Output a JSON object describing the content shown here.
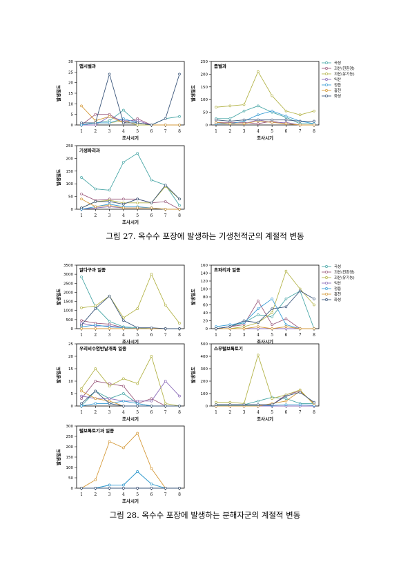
{
  "captions": {
    "fig27": "그림 27. 옥수수 포장에 발생하는 기생천적군의 계절적 변동",
    "fig28": "그림 28. 옥수수 포장에 발생하는 분해자군의 계절적 변동"
  },
  "legend_entries": [
    "곡성",
    "괴산(친환경)",
    "괴산(유기농)",
    "익산",
    "정읍",
    "홍천",
    "화성"
  ],
  "series_colors": [
    "#4aa7a7",
    "#9b5b7d",
    "#b4b44a",
    "#8b6bb8",
    "#3b9ed6",
    "#d59a3a",
    "#3a557a"
  ],
  "chart_data": [
    {
      "type": "line",
      "title": "맵시벌과",
      "xlabel": "조사시기",
      "ylabel": "발생밀도",
      "categories": [
        1,
        2,
        3,
        4,
        5,
        6,
        7,
        8
      ],
      "ylim": [
        0,
        30
      ],
      "yticks": [
        0,
        5,
        10,
        15,
        20,
        25,
        30
      ],
      "series": [
        {
          "name": "곡성",
          "values": [
            0,
            1,
            2,
            7,
            1,
            0,
            3,
            4
          ]
        },
        {
          "name": "괴산(친환경)",
          "values": [
            0,
            5,
            5,
            1,
            3,
            0,
            0,
            0
          ]
        },
        {
          "name": "괴산(유기농)",
          "values": [
            0,
            1,
            1,
            2,
            0,
            0,
            0,
            0
          ]
        },
        {
          "name": "익산",
          "values": [
            0,
            0,
            4,
            2,
            2,
            0,
            0,
            0
          ]
        },
        {
          "name": "정읍",
          "values": [
            0,
            1,
            1,
            3,
            1,
            0,
            0,
            0
          ]
        },
        {
          "name": "홍천",
          "values": [
            9,
            2,
            4,
            1,
            1,
            0,
            0,
            0
          ]
        },
        {
          "name": "화성",
          "values": [
            1,
            1,
            24,
            1,
            1,
            0,
            3,
            24
          ]
        }
      ]
    },
    {
      "type": "line",
      "title": "좀벌과",
      "xlabel": "조사시기",
      "ylabel": "발생밀도",
      "categories": [
        1,
        2,
        3,
        4,
        5,
        6,
        7,
        8
      ],
      "ylim": [
        0,
        250
      ],
      "yticks": [
        0,
        50,
        100,
        150,
        200,
        250
      ],
      "series": [
        {
          "name": "곡성",
          "values": [
            25,
            25,
            55,
            75,
            50,
            30,
            5,
            5
          ]
        },
        {
          "name": "괴산(친환경)",
          "values": [
            10,
            10,
            10,
            5,
            15,
            5,
            0,
            0
          ]
        },
        {
          "name": "괴산(유기농)",
          "values": [
            70,
            75,
            80,
            210,
            115,
            55,
            40,
            55
          ]
        },
        {
          "name": "익산",
          "values": [
            5,
            5,
            5,
            20,
            10,
            10,
            0,
            0
          ]
        },
        {
          "name": "정읍",
          "values": [
            5,
            5,
            15,
            40,
            55,
            35,
            15,
            5
          ]
        },
        {
          "name": "홍천",
          "values": [
            10,
            5,
            5,
            15,
            10,
            5,
            0,
            0
          ]
        },
        {
          "name": "화성",
          "values": [
            20,
            15,
            20,
            20,
            20,
            20,
            15,
            15
          ]
        }
      ]
    },
    {
      "type": "line",
      "title": "기생파리과",
      "xlabel": "조사시기",
      "ylabel": "발생밀도",
      "categories": [
        1,
        2,
        3,
        4,
        5,
        6,
        7,
        8
      ],
      "ylim": [
        0,
        250
      ],
      "yticks": [
        0,
        50,
        100,
        150,
        200,
        250
      ],
      "series": [
        {
          "name": "곡성",
          "values": [
            125,
            80,
            75,
            185,
            220,
            115,
            95,
            15
          ]
        },
        {
          "name": "괴산(친환경)",
          "values": [
            60,
            35,
            40,
            40,
            40,
            25,
            30,
            0
          ]
        },
        {
          "name": "괴산(유기농)",
          "values": [
            5,
            30,
            35,
            25,
            25,
            25,
            90,
            40
          ]
        },
        {
          "name": "익산",
          "values": [
            0,
            5,
            10,
            5,
            5,
            5,
            0,
            0
          ]
        },
        {
          "name": "정읍",
          "values": [
            0,
            10,
            20,
            10,
            10,
            5,
            0,
            0
          ]
        },
        {
          "name": "홍천",
          "values": [
            40,
            10,
            15,
            5,
            5,
            5,
            0,
            0
          ]
        },
        {
          "name": "화성",
          "values": [
            5,
            30,
            30,
            20,
            40,
            25,
            95,
            40
          ]
        }
      ]
    },
    {
      "type": "line",
      "title": "알다구과 일종",
      "xlabel": "조사시기",
      "ylabel": "발생밀도",
      "categories": [
        1,
        2,
        3,
        4,
        5,
        6,
        7,
        8
      ],
      "ylim": [
        0,
        3500
      ],
      "yticks": [
        0,
        500,
        1000,
        1500,
        2000,
        2500,
        3000,
        3500
      ],
      "series": [
        {
          "name": "곡성",
          "values": [
            2850,
            1200,
            400,
            100,
            50,
            0,
            0,
            0
          ]
        },
        {
          "name": "괴산(친환경)",
          "values": [
            450,
            300,
            250,
            50,
            0,
            0,
            0,
            0
          ]
        },
        {
          "name": "괴산(유기농)",
          "values": [
            1150,
            1250,
            1800,
            600,
            1100,
            3000,
            1300,
            300
          ]
        },
        {
          "name": "익산",
          "values": [
            300,
            150,
            150,
            50,
            0,
            0,
            0,
            0
          ]
        },
        {
          "name": "정읍",
          "values": [
            100,
            200,
            100,
            50,
            0,
            0,
            0,
            0
          ]
        },
        {
          "name": "홍천",
          "values": [
            0,
            0,
            0,
            0,
            0,
            0,
            0,
            0
          ]
        },
        {
          "name": "화성",
          "values": [
            200,
            1100,
            1800,
            450,
            50,
            50,
            0,
            0
          ]
        }
      ]
    },
    {
      "type": "line",
      "title": "초파리과 일종",
      "xlabel": "조사시기",
      "ylabel": "발생밀도",
      "categories": [
        1,
        2,
        3,
        4,
        5,
        6,
        7,
        8
      ],
      "ylim": [
        0,
        160
      ],
      "yticks": [
        0,
        20,
        40,
        60,
        80,
        100,
        120,
        140,
        160
      ],
      "series": [
        {
          "name": "곡성",
          "values": [
            0,
            5,
            15,
            35,
            30,
            75,
            95,
            0
          ]
        },
        {
          "name": "괴산(친환경)",
          "values": [
            0,
            5,
            10,
            70,
            10,
            25,
            0,
            0
          ]
        },
        {
          "name": "괴산(유기농)",
          "values": [
            0,
            0,
            5,
            15,
            40,
            145,
            100,
            60
          ]
        },
        {
          "name": "익산",
          "values": [
            0,
            0,
            0,
            0,
            0,
            0,
            0,
            0
          ]
        },
        {
          "name": "정읍",
          "values": [
            5,
            10,
            15,
            50,
            75,
            10,
            0,
            0
          ]
        },
        {
          "name": "홍천",
          "values": [
            0,
            0,
            0,
            5,
            0,
            5,
            0,
            0
          ]
        },
        {
          "name": "화성",
          "values": [
            0,
            5,
            20,
            15,
            50,
            55,
            95,
            75
          ]
        }
      ]
    },
    {
      "type": "line",
      "title": "우리비수염반날개족 일종",
      "xlabel": "조사시기",
      "ylabel": "발생밀도",
      "categories": [
        1,
        2,
        3,
        4,
        5,
        6,
        7,
        8
      ],
      "ylim": [
        0,
        25
      ],
      "yticks": [
        0,
        5,
        10,
        15,
        20,
        25
      ],
      "series": [
        {
          "name": "곡성",
          "values": [
            0,
            6,
            3,
            5,
            1,
            0,
            0,
            0
          ]
        },
        {
          "name": "괴산(친환경)",
          "values": [
            3,
            10,
            9,
            8,
            1,
            3,
            0,
            0
          ]
        },
        {
          "name": "괴산(유기농)",
          "values": [
            7,
            15,
            8,
            11,
            9,
            20,
            1,
            0
          ]
        },
        {
          "name": "익산",
          "values": [
            4,
            3,
            3,
            2,
            2,
            2,
            10,
            4
          ]
        },
        {
          "name": "정읍",
          "values": [
            0,
            1,
            1,
            2,
            1,
            0,
            0,
            0
          ]
        },
        {
          "name": "홍천",
          "values": [
            6,
            3,
            2,
            0,
            0,
            0,
            0,
            0
          ]
        },
        {
          "name": "화성",
          "values": [
            1,
            6,
            1,
            0,
            0,
            0,
            0,
            0
          ]
        }
      ]
    },
    {
      "type": "line",
      "title": "스무털보톡토기",
      "xlabel": "조사시기",
      "ylabel": "발생밀도",
      "categories": [
        1,
        2,
        3,
        4,
        5,
        6,
        7,
        8
      ],
      "ylim": [
        0,
        500
      ],
      "yticks": [
        0,
        100,
        200,
        300,
        400,
        500
      ],
      "series": [
        {
          "name": "곡성",
          "values": [
            10,
            10,
            10,
            40,
            70,
            60,
            20,
            20
          ]
        },
        {
          "name": "괴산(친환경)",
          "values": [
            10,
            10,
            10,
            10,
            10,
            90,
            120,
            20
          ]
        },
        {
          "name": "괴산(유기농)",
          "values": [
            30,
            30,
            20,
            410,
            60,
            90,
            130,
            10
          ]
        },
        {
          "name": "익산",
          "values": [
            0,
            0,
            0,
            0,
            0,
            0,
            0,
            0
          ]
        },
        {
          "name": "정읍",
          "values": [
            5,
            5,
            5,
            5,
            5,
            10,
            10,
            5
          ]
        },
        {
          "name": "홍천",
          "values": [
            0,
            0,
            0,
            0,
            20,
            40,
            120,
            20
          ]
        },
        {
          "name": "화성",
          "values": [
            10,
            10,
            10,
            10,
            10,
            80,
            110,
            30
          ]
        }
      ]
    },
    {
      "type": "line",
      "title": "털보톡토기과 일종",
      "xlabel": "조사시기",
      "ylabel": "발생밀도",
      "categories": [
        1,
        2,
        3,
        4,
        5,
        6,
        7,
        8
      ],
      "ylim": [
        0,
        300
      ],
      "yticks": [
        0,
        50,
        100,
        150,
        200,
        250,
        300
      ],
      "series": [
        {
          "name": "곡성",
          "values": [
            0,
            0,
            15,
            15,
            80,
            20,
            0,
            0
          ]
        },
        {
          "name": "괴산(친환경)",
          "values": [
            0,
            0,
            0,
            0,
            0,
            0,
            0,
            0
          ]
        },
        {
          "name": "괴산(유기농)",
          "values": [
            0,
            0,
            0,
            0,
            0,
            0,
            0,
            0
          ]
        },
        {
          "name": "익산",
          "values": [
            0,
            0,
            0,
            0,
            0,
            0,
            0,
            0
          ]
        },
        {
          "name": "정읍",
          "values": [
            0,
            0,
            15,
            15,
            80,
            20,
            0,
            0
          ]
        },
        {
          "name": "홍천",
          "values": [
            0,
            40,
            225,
            195,
            265,
            95,
            0,
            0
          ]
        },
        {
          "name": "화성",
          "values": [
            0,
            0,
            0,
            0,
            0,
            0,
            0,
            0
          ]
        }
      ]
    }
  ]
}
